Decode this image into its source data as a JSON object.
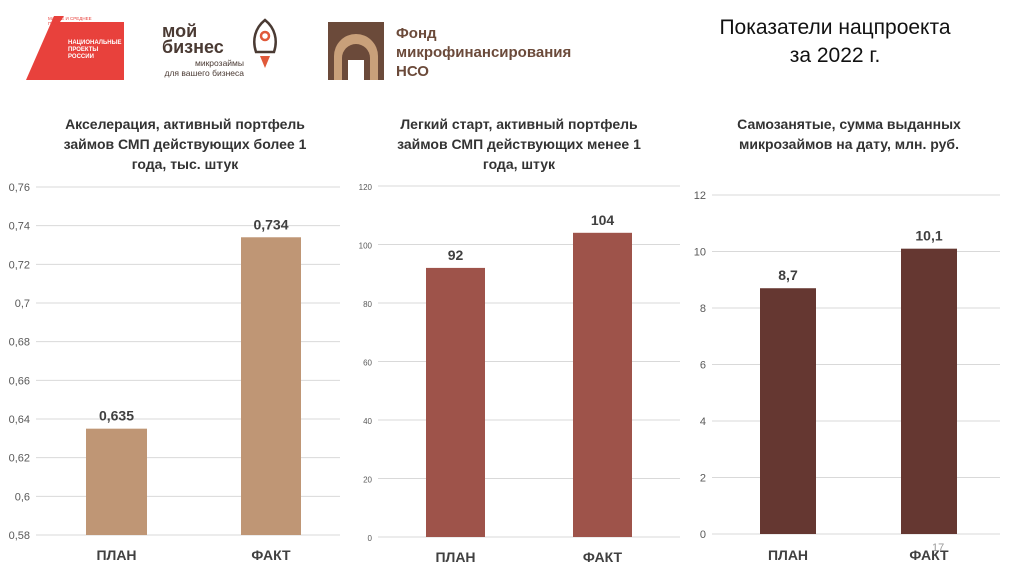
{
  "header": {
    "title_line1": "Показатели нацпроекта",
    "title_line2": "за 2022 г."
  },
  "logos": {
    "national_projects": {
      "small_text": "МАЛОЕ И СРЕДНЕЕ ПРЕДПРИНИМАТЕЛЬСТВО",
      "main_text": "НАЦИОНАЛЬНЫЕ ПРОЕКТЫ РОССИИ",
      "color": "#e8413c"
    },
    "moy_biznes": {
      "word1": "мой",
      "word2": "бизнес",
      "tagline1": "микрозаймы",
      "tagline2": "для вашего бизнеса",
      "color": "#4a3a33",
      "accent": "#e0593a"
    },
    "fond": {
      "line1": "Фонд",
      "line2": "микрофинансирования",
      "line3": "НСО",
      "color": "#6b4a3a",
      "accent": "#c9a07a"
    }
  },
  "page_number": "17",
  "chart_data": [
    {
      "type": "bar",
      "title_lines": [
        "Акселерация, активный портфель",
        "займов СМП действующих более 1",
        "года, тыс. штук"
      ],
      "categories": [
        "ПЛАН",
        "ФАКТ"
      ],
      "values": [
        0.635,
        0.734
      ],
      "value_labels": [
        "0,635",
        "0,734"
      ],
      "ylim": [
        0.58,
        0.76
      ],
      "yticks": [
        0.58,
        0.6,
        0.62,
        0.64,
        0.66,
        0.68,
        0.7,
        0.72,
        0.74,
        0.76
      ],
      "ytick_labels": [
        "0,58",
        "0,6",
        "0,62",
        "0,64",
        "0,66",
        "0,68",
        "0,7",
        "0,72",
        "0,74",
        "0,76"
      ],
      "color": "#bf9675",
      "grid": true
    },
    {
      "type": "bar",
      "title_lines": [
        "Легкий старт, активный портфель",
        "займов СМП действующих менее 1",
        "года, штук"
      ],
      "categories": [
        "ПЛАН",
        "ФАКТ"
      ],
      "values": [
        92,
        104
      ],
      "value_labels": [
        "92",
        "104"
      ],
      "ylim": [
        0,
        120
      ],
      "yticks": [
        0,
        20,
        40,
        60,
        80,
        100,
        120
      ],
      "ytick_labels": [
        "0",
        "20",
        "40",
        "60",
        "80",
        "100",
        "120"
      ],
      "color": "#9e534a",
      "grid": true
    },
    {
      "type": "bar",
      "title_lines": [
        "Самозанятые, сумма выданных",
        "микрозаймов на дату, млн. руб."
      ],
      "categories": [
        "ПЛАН",
        "ФАКТ"
      ],
      "values": [
        8.7,
        10.1
      ],
      "value_labels": [
        "8,7",
        "10,1"
      ],
      "ylim": [
        0,
        12
      ],
      "yticks": [
        0,
        2,
        4,
        6,
        8,
        10,
        12
      ],
      "ytick_labels": [
        "0",
        "2",
        "4",
        "6",
        "8",
        "10",
        "12"
      ],
      "color": "#653731",
      "grid": true
    }
  ]
}
